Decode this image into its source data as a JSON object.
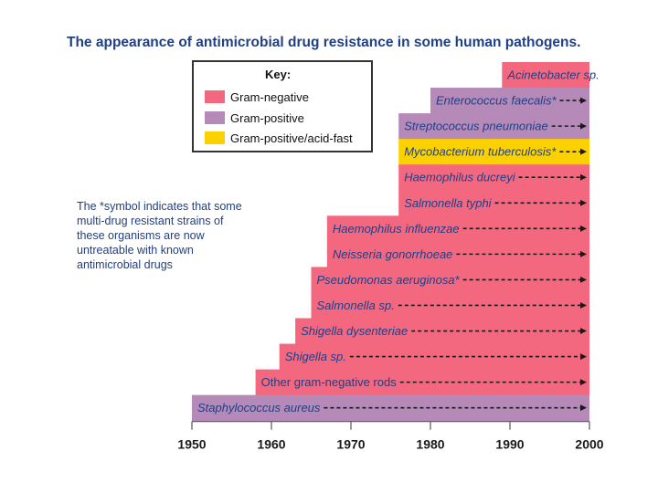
{
  "colors": {
    "gram_negative": "#f4687f",
    "gram_positive": "#b58ab8",
    "acid_fast": "#fbd100",
    "title": "#1f3f86",
    "text": "#1f3f86",
    "arrow": "#1a1a1a"
  },
  "key": {
    "title": "Key:",
    "entries": [
      {
        "label": "Gram-negative",
        "color_key": "gram_negative"
      },
      {
        "label": "Gram-positive",
        "color_key": "gram_positive"
      },
      {
        "label": "Gram-positive/acid-fast",
        "color_key": "acid_fast"
      }
    ]
  },
  "note": "The *symbol indicates that some multi-drug resistant strains of these organisms are now untreatable with known antimicrobial drugs",
  "chart_data": {
    "type": "bar",
    "orientation": "horizontal",
    "title": "The appearance of antimicrobial drug resistance in some human pathogens.",
    "xlabel": "",
    "ylabel": "",
    "xlim": [
      1950,
      2000
    ],
    "xticks": [
      "1950",
      "1960",
      "1970",
      "1980",
      "1990",
      "2000"
    ],
    "bars": [
      {
        "label": "Acinetobacter sp.",
        "start": 1989,
        "end": 2000,
        "group": "gram_negative",
        "italic": true
      },
      {
        "label": "Enterococcus faecalis*",
        "start": 1980,
        "end": 2000,
        "group": "gram_positive",
        "italic": true
      },
      {
        "label": "Streptococcus pneumoniae",
        "start": 1976,
        "end": 2000,
        "group": "gram_positive",
        "italic": true
      },
      {
        "label": "Mycobacterium tuberculosis*",
        "start": 1976,
        "end": 2000,
        "group": "acid_fast",
        "italic": true
      },
      {
        "label": "Haemophilus ducreyi",
        "start": 1976,
        "end": 2000,
        "group": "gram_negative",
        "italic": true
      },
      {
        "label": "Salmonella typhi",
        "start": 1976,
        "end": 2000,
        "group": "gram_negative",
        "italic": true
      },
      {
        "label": "Haemophilus influenzae",
        "start": 1967,
        "end": 2000,
        "group": "gram_negative",
        "italic": true
      },
      {
        "label": "Neisseria gonorrhoeae",
        "start": 1967,
        "end": 2000,
        "group": "gram_negative",
        "italic": true
      },
      {
        "label": "Pseudomonas aeruginosa*",
        "start": 1965,
        "end": 2000,
        "group": "gram_negative",
        "italic": true
      },
      {
        "label": "Salmonella sp.",
        "start": 1965,
        "end": 2000,
        "group": "gram_negative",
        "italic": true
      },
      {
        "label": "Shigella dysenteriae",
        "start": 1963,
        "end": 2000,
        "group": "gram_negative",
        "italic": true
      },
      {
        "label": "Shigella sp.",
        "start": 1961,
        "end": 2000,
        "group": "gram_negative",
        "italic": true
      },
      {
        "label": "Other gram-negative rods",
        "start": 1958,
        "end": 2000,
        "group": "gram_negative",
        "italic": false
      },
      {
        "label": "Staphylococcus aureus",
        "start": 1950,
        "end": 2000,
        "group": "gram_positive",
        "italic": true
      }
    ]
  }
}
